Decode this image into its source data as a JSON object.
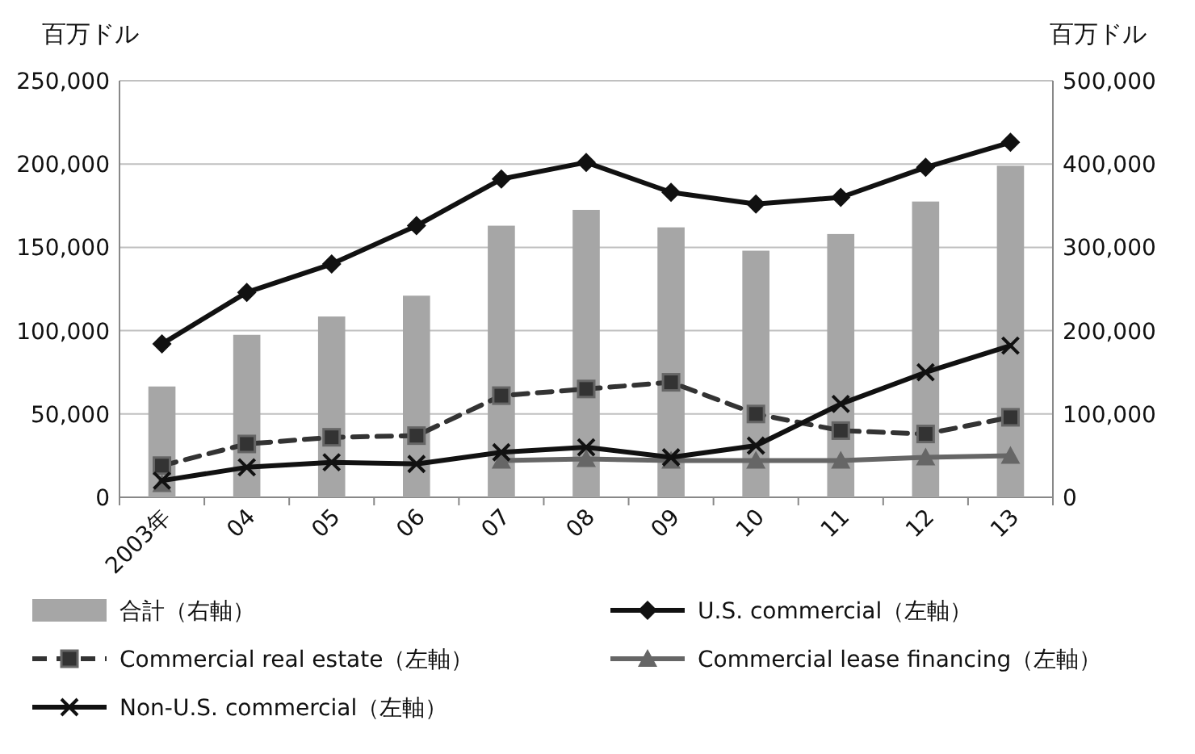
{
  "chart_data": {
    "type": "bar",
    "ylabel": "百万ドル",
    "y2label": "百万ドル",
    "categories": [
      "2003年",
      "04",
      "05",
      "06",
      "07",
      "08",
      "09",
      "10",
      "11",
      "12",
      "13"
    ],
    "series": [
      {
        "name": "合計（右軸）",
        "axis": "y2",
        "color": "#a6a6a6",
        "values": [
          133000,
          195000,
          217000,
          242000,
          326000,
          345000,
          324000,
          296000,
          316000,
          355000,
          398000
        ]
      },
      {
        "name": "U.S. commercial（左軸）",
        "type": "line",
        "color": "#111111",
        "marker": "diamond",
        "line_style": "solid",
        "values": [
          92000,
          123000,
          140000,
          163000,
          191000,
          201000,
          183000,
          176000,
          180000,
          198000,
          213000
        ]
      },
      {
        "name": "Commercial real estate（左軸）",
        "type": "line",
        "color": "#333333",
        "marker": "square",
        "line_style": "dashed",
        "values": [
          19000,
          32000,
          36000,
          37000,
          61000,
          65000,
          69000,
          50000,
          40000,
          38000,
          48000
        ]
      },
      {
        "name": "Commercial lease financing（左軸）",
        "type": "line",
        "color": "#666666",
        "marker": "triangle",
        "line_style": "solid",
        "values": [
          8000,
          null,
          null,
          null,
          22000,
          23000,
          22000,
          22000,
          22000,
          24000,
          25000
        ]
      },
      {
        "name": "Non-U.S. commercial（左軸）",
        "type": "line",
        "color": "#111111",
        "marker": "cross",
        "line_style": "solid",
        "values": [
          10000,
          18000,
          21000,
          20000,
          27000,
          30000,
          24000,
          31000,
          56000,
          75000,
          91000
        ]
      }
    ],
    "ylim": [
      0,
      250000
    ],
    "yticks": [
      {
        "value": 0,
        "label": "0"
      },
      {
        "value": 50000,
        "label": "50,000"
      },
      {
        "value": 100000,
        "label": "100,000"
      },
      {
        "value": 150000,
        "label": "150,000"
      },
      {
        "value": 200000,
        "label": "200,000"
      },
      {
        "value": 250000,
        "label": "250,000"
      }
    ],
    "y2lim": [
      0,
      500000
    ],
    "y2ticks": [
      {
        "value": 0,
        "label": "0"
      },
      {
        "value": 100000,
        "label": "100,000"
      },
      {
        "value": 200000,
        "label": "200,000"
      },
      {
        "value": 300000,
        "label": "300,000"
      },
      {
        "value": 400000,
        "label": "400,000"
      },
      {
        "value": 500000,
        "label": "500,000"
      }
    ],
    "grid": "y",
    "legend": "bottom"
  }
}
